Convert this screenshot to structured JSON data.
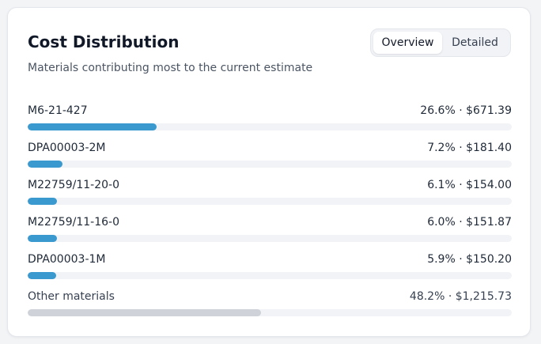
{
  "card": {
    "title": "Cost Distribution",
    "subtitle": "Materials contributing most to the current estimate"
  },
  "view_toggle": {
    "options": [
      "Overview",
      "Detailed"
    ],
    "selected": "Overview"
  },
  "colors": {
    "bar_fill": "#3a9ad0",
    "other_fill": "#cfd3d9",
    "track": "#f1f3f6"
  },
  "materials": [
    {
      "name": "M6-21-427",
      "value_text": "26.6% · $671.39",
      "percent": 26.6
    },
    {
      "name": "DPA00003-2M",
      "value_text": "7.2% · $181.40",
      "percent": 7.2
    },
    {
      "name": "M22759/11-20-0",
      "value_text": "6.1% · $154.00",
      "percent": 6.1
    },
    {
      "name": "M22759/11-16-0",
      "value_text": "6.0% · $151.87",
      "percent": 6.0
    },
    {
      "name": "DPA00003-1M",
      "value_text": "5.9% · $150.20",
      "percent": 5.9
    }
  ],
  "other": {
    "name": "Other materials",
    "value_text": "48.2% · $1,215.73",
    "percent": 48.2
  }
}
